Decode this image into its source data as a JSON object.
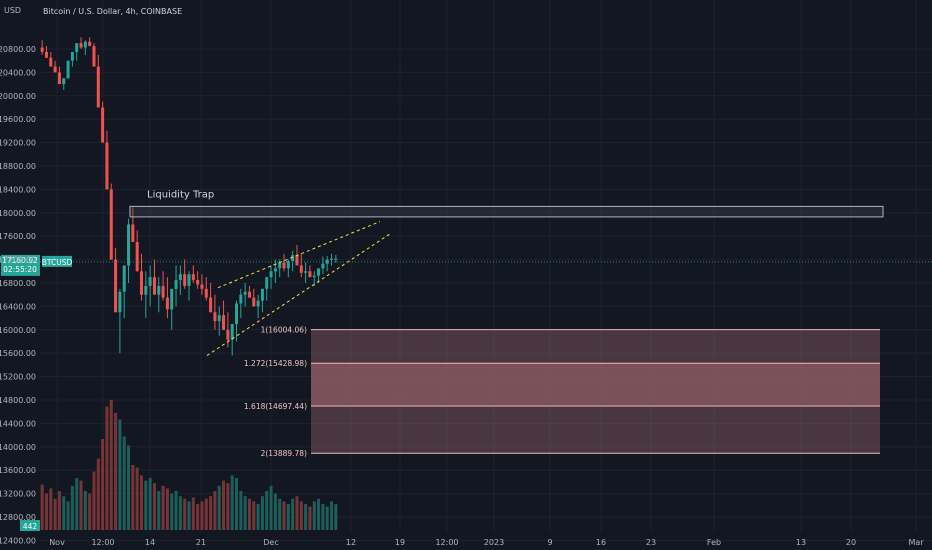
{
  "header": {
    "currency": "USD",
    "symbol_title": "Bitcoin / U.S. Dollar, 4h, COINBASE"
  },
  "colors": {
    "background": "#131722",
    "grid": "#1e222d",
    "up": "#26a69a",
    "down": "#ef5350",
    "price_line": "#26a69a",
    "fib_zone": "#8c4d55",
    "fib_zone_mid": "#b07078",
    "trend_lines": "#f5e050",
    "rect_border": "#b2b5be"
  },
  "chart_data": {
    "type": "candlestick",
    "title": "Bitcoin / U.S. Dollar, 4h, COINBASE",
    "y_axis": {
      "ticks": [
        "20800.00",
        "20400.00",
        "20000.00",
        "19600.00",
        "19200.00",
        "18800.00",
        "18400.00",
        "18000.00",
        "17600.00",
        "17200.00",
        "16800.00",
        "16400.00",
        "16000.00",
        "15600.00",
        "15200.00",
        "14800.00",
        "14400.00",
        "14000.00",
        "13600.00",
        "13200.00",
        "12800.00",
        "12400.00"
      ],
      "range": [
        12250,
        21100
      ]
    },
    "x_axis": {
      "ticks": [
        "Nov",
        "12:00",
        "14",
        "21",
        "Dec",
        "12",
        "19",
        "12:00",
        "2023",
        "9",
        "16",
        "23",
        "Feb",
        "13",
        "20",
        "Mar"
      ]
    },
    "current_price": {
      "value": "17160.92",
      "countdown": "02:55:20",
      "symbol": "BTCUSD"
    },
    "volume_badge": "442",
    "annotations": {
      "liquidity_trap": {
        "label": "Liquidity Trap",
        "price_low": 17930,
        "price_high": 18110
      }
    },
    "fib_levels": [
      {
        "label": "1(16004.06)",
        "value": 16004.06
      },
      {
        "label": "1.272(15428.98)",
        "value": 15428.98
      },
      {
        "label": "1.618(14697.44)",
        "value": 14697.44
      },
      {
        "label": "2(13889.78)",
        "value": 13889.78
      }
    ],
    "wedge": {
      "lower": {
        "from": {
          "date": "Nov 22",
          "price": 15560
        },
        "to": {
          "date": "Dec 14",
          "price": 17640
        }
      },
      "upper": {
        "from": {
          "date": "Nov 22",
          "price": 16720
        },
        "to": {
          "date": "Dec 13",
          "price": 17850
        }
      }
    },
    "price_path": [
      [
        20700,
        20950
      ],
      [
        20650,
        20850
      ],
      [
        20500,
        20750
      ],
      [
        20400,
        20600
      ],
      [
        20200,
        20500
      ],
      [
        20100,
        20300
      ],
      [
        20300,
        20600
      ],
      [
        20500,
        20750
      ],
      [
        20600,
        20900
      ],
      [
        20800,
        21000
      ],
      [
        20700,
        20950
      ],
      [
        20850,
        21000
      ],
      [
        20500,
        20900
      ],
      [
        19800,
        20700
      ],
      [
        19200,
        19900
      ],
      [
        18400,
        19400
      ],
      [
        17200,
        18500
      ],
      [
        16300,
        17400
      ],
      [
        15600,
        16700
      ],
      [
        16200,
        17100
      ],
      [
        16800,
        17900
      ],
      [
        17500,
        18100
      ],
      [
        17000,
        17700
      ],
      [
        16500,
        17300
      ],
      [
        16200,
        17000
      ],
      [
        16400,
        17100
      ],
      [
        16600,
        17200
      ],
      [
        16300,
        16900
      ],
      [
        16500,
        17000
      ],
      [
        16200,
        16900
      ],
      [
        16000,
        16700
      ],
      [
        16400,
        17100
      ],
      [
        16600,
        17100
      ],
      [
        16700,
        17200
      ],
      [
        16500,
        17000
      ],
      [
        16800,
        17100
      ],
      [
        16700,
        17000
      ],
      [
        16600,
        16950
      ],
      [
        16500,
        16900
      ],
      [
        16300,
        16800
      ],
      [
        16000,
        16600
      ],
      [
        15900,
        16400
      ],
      [
        16000,
        16500
      ],
      [
        15700,
        16300
      ],
      [
        15560,
        16100
      ],
      [
        15800,
        16500
      ],
      [
        16200,
        16700
      ],
      [
        16400,
        16800
      ],
      [
        16550,
        16750
      ],
      [
        16400,
        16700
      ],
      [
        16200,
        16600
      ],
      [
        16300,
        16700
      ],
      [
        16500,
        16900
      ],
      [
        16700,
        17100
      ],
      [
        16800,
        17200
      ],
      [
        16900,
        17200
      ],
      [
        17000,
        17300
      ],
      [
        16900,
        17200
      ],
      [
        17000,
        17350
      ],
      [
        17100,
        17450
      ],
      [
        16900,
        17300
      ],
      [
        16800,
        17150
      ],
      [
        16900,
        17100
      ],
      [
        16750,
        17000
      ],
      [
        16800,
        17050
      ],
      [
        16950,
        17250
      ],
      [
        17000,
        17260
      ],
      [
        17100,
        17300
      ],
      [
        17150,
        17280
      ]
    ],
    "volume": [
      0.35,
      0.28,
      0.32,
      0.24,
      0.3,
      0.26,
      0.22,
      0.34,
      0.4,
      0.38,
      0.3,
      0.28,
      0.45,
      0.55,
      0.7,
      0.95,
      1.0,
      0.9,
      0.85,
      0.72,
      0.65,
      0.5,
      0.48,
      0.42,
      0.38,
      0.4,
      0.36,
      0.3,
      0.34,
      0.32,
      0.28,
      0.3,
      0.26,
      0.24,
      0.22,
      0.25,
      0.2,
      0.22,
      0.24,
      0.26,
      0.3,
      0.34,
      0.38,
      0.36,
      0.42,
      0.4,
      0.3,
      0.26,
      0.24,
      0.22,
      0.2,
      0.26,
      0.3,
      0.34,
      0.28,
      0.24,
      0.22,
      0.2,
      0.24,
      0.26,
      0.22,
      0.2,
      0.18,
      0.22,
      0.24,
      0.2,
      0.18,
      0.22,
      0.2
    ]
  }
}
